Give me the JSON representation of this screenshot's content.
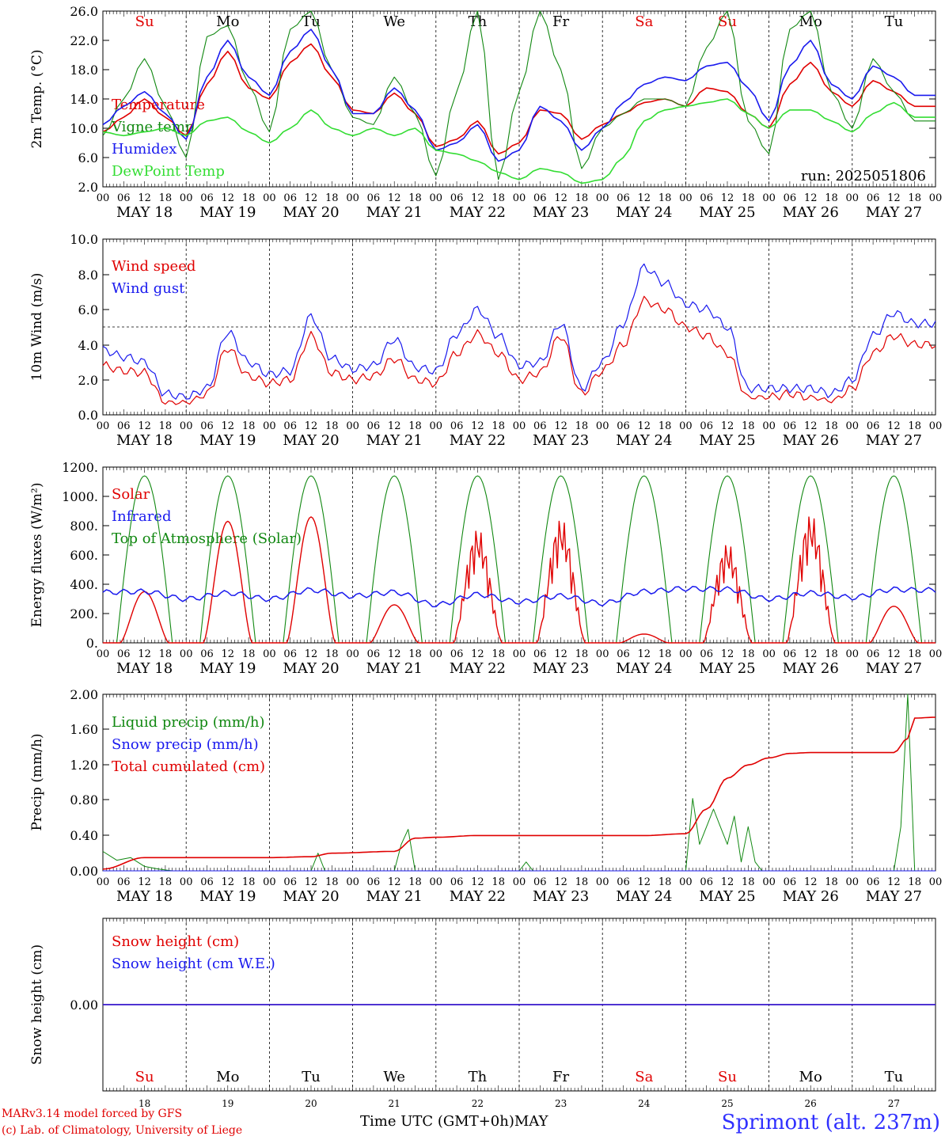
{
  "colors": {
    "red": "#e00000",
    "green": "#118811",
    "lightgreen": "#33dd33",
    "blue": "#1a1aee",
    "black": "#000000"
  },
  "days": {
    "dates": [
      "MAY 18",
      "MAY 19",
      "MAY 20",
      "MAY 21",
      "MAY 22",
      "MAY 23",
      "MAY 24",
      "MAY 25",
      "MAY 26",
      "MAY 27"
    ],
    "weekdays": [
      "Su",
      "Mo",
      "Tu",
      "We",
      "Th",
      "Fr",
      "Sa",
      "Su",
      "Mo",
      "Tu"
    ],
    "weekday_colors": [
      "red",
      "black",
      "black",
      "black",
      "black",
      "black",
      "red",
      "red",
      "black",
      "black"
    ],
    "day_numbers": [
      "18",
      "19",
      "20",
      "21",
      "22",
      "23",
      "24",
      "25",
      "26",
      "27"
    ],
    "hour_ticks": [
      "00",
      "06",
      "12",
      "18"
    ],
    "end_tick": "00"
  },
  "footer": {
    "credit_line1": "MARv3.14 model forced by GFS",
    "credit_line2": "(c) Lab. of Climatology, University of Liege",
    "x_axis_label": "Time UTC (GMT+0h)",
    "month": "MAY",
    "station": "Sprimont (alt. 237m)"
  },
  "chart_data": [
    {
      "id": "temperature",
      "type": "line",
      "ylabel": "2m Temp. (°C)",
      "ylim": [
        2.0,
        26.0
      ],
      "yticks": [
        "2.0",
        "6.0",
        "10.0",
        "14.0",
        "18.0",
        "22.0",
        "26.0"
      ],
      "annotation": "run: 2025051806",
      "x_unit": "hours since MAY 18 00 UTC",
      "series": [
        {
          "name": "Temperature",
          "color": "red",
          "x": [
            0,
            6,
            12,
            18,
            24,
            30,
            36,
            42,
            48,
            54,
            60,
            66,
            72,
            78,
            84,
            90,
            96,
            102,
            108,
            114,
            120,
            126,
            132,
            138,
            144,
            150,
            156,
            162,
            168,
            174,
            180,
            186,
            192,
            198,
            204,
            210,
            216,
            222,
            228,
            234
          ],
          "y": [
            9.5,
            11.5,
            14.0,
            11.5,
            9.0,
            16.0,
            20.5,
            15.5,
            14.0,
            19.0,
            21.5,
            17.0,
            12.5,
            12.0,
            14.8,
            12.0,
            7.5,
            8.5,
            11.0,
            6.5,
            8.0,
            12.5,
            12.0,
            8.5,
            10.5,
            12.0,
            13.5,
            14.0,
            13.0,
            15.5,
            15.0,
            12.0,
            10.0,
            16.0,
            19.0,
            15.0,
            13.0,
            16.5,
            15.0,
            13.0
          ]
        },
        {
          "name": "Vigne temp",
          "color": "green",
          "x": [
            0,
            6,
            12,
            18,
            24,
            30,
            36,
            42,
            48,
            54,
            60,
            66,
            72,
            78,
            84,
            90,
            96,
            102,
            108,
            114,
            120,
            126,
            132,
            138,
            144,
            150,
            156,
            162,
            168,
            174,
            180,
            186,
            192,
            198,
            204,
            210,
            216,
            222,
            228,
            234
          ],
          "y": [
            9.0,
            14.0,
            19.5,
            13.0,
            6.0,
            22.5,
            24.0,
            16.0,
            9.5,
            23.5,
            26.0,
            18.0,
            11.5,
            10.5,
            17.0,
            12.0,
            3.5,
            15.0,
            26.0,
            3.0,
            15.0,
            26.0,
            18.0,
            4.5,
            10.0,
            12.0,
            14.0,
            14.0,
            13.0,
            21.0,
            26.0,
            11.0,
            6.5,
            23.5,
            26.0,
            15.0,
            10.0,
            19.5,
            15.0,
            11.0
          ]
        },
        {
          "name": "Humidex",
          "color": "blue",
          "x": [
            0,
            6,
            12,
            18,
            24,
            30,
            36,
            42,
            48,
            54,
            60,
            66,
            72,
            78,
            84,
            90,
            96,
            102,
            108,
            114,
            120,
            126,
            132,
            138,
            144,
            150,
            156,
            162,
            168,
            174,
            180,
            186,
            192,
            198,
            204,
            210,
            216,
            222,
            228,
            234
          ],
          "y": [
            10.5,
            13.0,
            15.0,
            12.0,
            8.5,
            17.0,
            22.0,
            17.0,
            14.5,
            20.5,
            23.5,
            18.0,
            12.0,
            12.0,
            15.5,
            12.5,
            7.0,
            8.0,
            10.5,
            5.5,
            7.0,
            13.0,
            11.0,
            7.0,
            10.0,
            13.5,
            16.0,
            17.0,
            16.5,
            18.5,
            19.0,
            15.5,
            11.0,
            18.5,
            22.0,
            16.0,
            14.0,
            18.5,
            17.0,
            14.5
          ]
        },
        {
          "name": "DewPoint Temp",
          "color": "lightgreen",
          "x": [
            0,
            6,
            12,
            18,
            24,
            30,
            36,
            42,
            48,
            54,
            60,
            66,
            72,
            78,
            84,
            90,
            96,
            102,
            108,
            114,
            120,
            126,
            132,
            138,
            144,
            150,
            156,
            162,
            168,
            174,
            180,
            186,
            192,
            198,
            204,
            210,
            216,
            222,
            228,
            234
          ],
          "y": [
            9.5,
            9.0,
            9.5,
            10.0,
            9.0,
            11.0,
            11.5,
            9.5,
            8.0,
            10.0,
            12.5,
            10.0,
            9.0,
            10.0,
            9.0,
            10.0,
            7.0,
            6.5,
            5.5,
            4.0,
            3.0,
            4.5,
            4.0,
            2.5,
            3.0,
            6.0,
            11.0,
            12.5,
            13.0,
            13.5,
            14.0,
            12.0,
            10.0,
            12.5,
            12.5,
            11.0,
            9.5,
            12.0,
            13.5,
            11.5
          ]
        }
      ]
    },
    {
      "id": "wind",
      "type": "line",
      "ylabel": "10m Wind (m/s)",
      "ylim": [
        0.0,
        10.0
      ],
      "yticks": [
        "0.0",
        "2.0",
        "4.0",
        "6.0",
        "8.0",
        "10.0"
      ],
      "reference_line": 5.0,
      "series": [
        {
          "name": "Wind speed",
          "color": "red",
          "x": [
            0,
            6,
            12,
            18,
            24,
            30,
            36,
            42,
            48,
            54,
            60,
            66,
            72,
            78,
            84,
            90,
            96,
            102,
            108,
            114,
            120,
            126,
            132,
            138,
            144,
            150,
            156,
            162,
            168,
            174,
            180,
            186,
            192,
            198,
            204,
            210,
            216,
            222,
            228,
            234
          ],
          "y": [
            2.8,
            2.5,
            2.4,
            0.7,
            0.7,
            1.2,
            3.8,
            2.2,
            1.8,
            2.0,
            4.5,
            2.4,
            2.0,
            2.2,
            3.2,
            2.0,
            1.8,
            3.5,
            4.6,
            3.5,
            2.0,
            2.4,
            4.5,
            1.2,
            2.5,
            4.0,
            6.5,
            6.0,
            5.0,
            4.5,
            3.5,
            1.0,
            1.0,
            1.2,
            1.0,
            0.8,
            1.5,
            3.5,
            4.5,
            4.0
          ]
        },
        {
          "name": "Wind gust",
          "color": "blue",
          "x": [
            0,
            6,
            12,
            18,
            24,
            30,
            36,
            42,
            48,
            54,
            60,
            66,
            72,
            78,
            84,
            90,
            96,
            102,
            108,
            114,
            120,
            126,
            132,
            138,
            144,
            150,
            156,
            162,
            168,
            174,
            180,
            186,
            192,
            198,
            204,
            210,
            216,
            222,
            228,
            234
          ],
          "y": [
            3.7,
            3.3,
            3.0,
            1.2,
            1.0,
            1.5,
            4.7,
            3.0,
            2.3,
            2.5,
            5.6,
            3.2,
            2.6,
            2.8,
            4.3,
            2.7,
            2.5,
            4.6,
            6.0,
            4.5,
            2.8,
            3.0,
            5.2,
            1.5,
            3.0,
            5.2,
            8.4,
            7.5,
            6.3,
            6.0,
            5.0,
            1.5,
            1.5,
            1.5,
            1.5,
            1.2,
            2.0,
            4.5,
            5.8,
            5.2
          ]
        }
      ]
    },
    {
      "id": "energy",
      "type": "line",
      "ylabel": "Energy fluxes (W/m²)",
      "ylim": [
        0,
        1200
      ],
      "yticks": [
        "0.",
        "200.",
        "400.",
        "600.",
        "800.",
        "1000.",
        "1200."
      ],
      "series": [
        {
          "name": "Solar",
          "color": "red",
          "day_peaks": [
            350,
            830,
            860,
            260,
            780,
            850,
            60,
            680,
            880,
            250
          ]
        },
        {
          "name": "Infrared",
          "color": "blue",
          "x": [
            0,
            12,
            24,
            36,
            48,
            60,
            72,
            84,
            96,
            108,
            120,
            132,
            144,
            156,
            168,
            180,
            192,
            204,
            216,
            228,
            234
          ],
          "y": [
            345,
            350,
            300,
            340,
            300,
            360,
            320,
            345,
            260,
            330,
            280,
            320,
            270,
            350,
            370,
            365,
            300,
            340,
            310,
            365,
            360
          ]
        },
        {
          "name": "Top of Atmosphere (Solar)",
          "color": "green",
          "day_peak": 1140
        }
      ]
    },
    {
      "id": "precip",
      "type": "line",
      "ylabel": "Precip (mm/h)",
      "ylim": [
        0.0,
        2.0
      ],
      "yticks": [
        "0.00",
        "0.40",
        "0.80",
        "1.20",
        "1.60",
        "2.00"
      ],
      "series": [
        {
          "name": "Liquid precip (mm/h)",
          "color": "green",
          "x": [
            0,
            4,
            8,
            12,
            16,
            20,
            24,
            60,
            62,
            64,
            84,
            86,
            88,
            90,
            120,
            122,
            124,
            168,
            170,
            172,
            174,
            176,
            178,
            180,
            182,
            184,
            186,
            188,
            190,
            192,
            228,
            230,
            232,
            234
          ],
          "y": [
            0.22,
            0.12,
            0.15,
            0.05,
            0.02,
            0,
            0,
            0,
            0.2,
            0,
            0,
            0.3,
            0.47,
            0,
            0,
            0.1,
            0,
            0,
            0.82,
            0.3,
            0.5,
            0.7,
            0.5,
            0.3,
            0.62,
            0.1,
            0.5,
            0.1,
            0,
            0,
            0,
            0.5,
            2.0,
            0
          ]
        },
        {
          "name": "Snow precip (mm/h)",
          "color": "blue",
          "x": [
            0,
            240
          ],
          "y": [
            0,
            0
          ]
        },
        {
          "name": "Total cumulated (cm)",
          "color": "red",
          "x": [
            0,
            12,
            24,
            48,
            60,
            66,
            84,
            90,
            96,
            108,
            120,
            156,
            168,
            174,
            180,
            186,
            192,
            198,
            204,
            216,
            228,
            232,
            234,
            240
          ],
          "y": [
            0.02,
            0.15,
            0.15,
            0.15,
            0.16,
            0.2,
            0.22,
            0.37,
            0.38,
            0.4,
            0.4,
            0.4,
            0.42,
            0.7,
            1.05,
            1.2,
            1.28,
            1.33,
            1.34,
            1.34,
            1.34,
            1.5,
            1.73,
            1.74
          ]
        }
      ]
    },
    {
      "id": "snow",
      "type": "line",
      "ylabel": "Snow height (cm)",
      "yticks": [
        "0.00"
      ],
      "series": [
        {
          "name": "Snow height (cm)",
          "color": "red",
          "x": [
            0,
            240
          ],
          "y": [
            0,
            0
          ]
        },
        {
          "name": "Snow height (cm W.E.)",
          "color": "blue",
          "x": [
            0,
            240
          ],
          "y": [
            0,
            0
          ]
        }
      ]
    }
  ]
}
